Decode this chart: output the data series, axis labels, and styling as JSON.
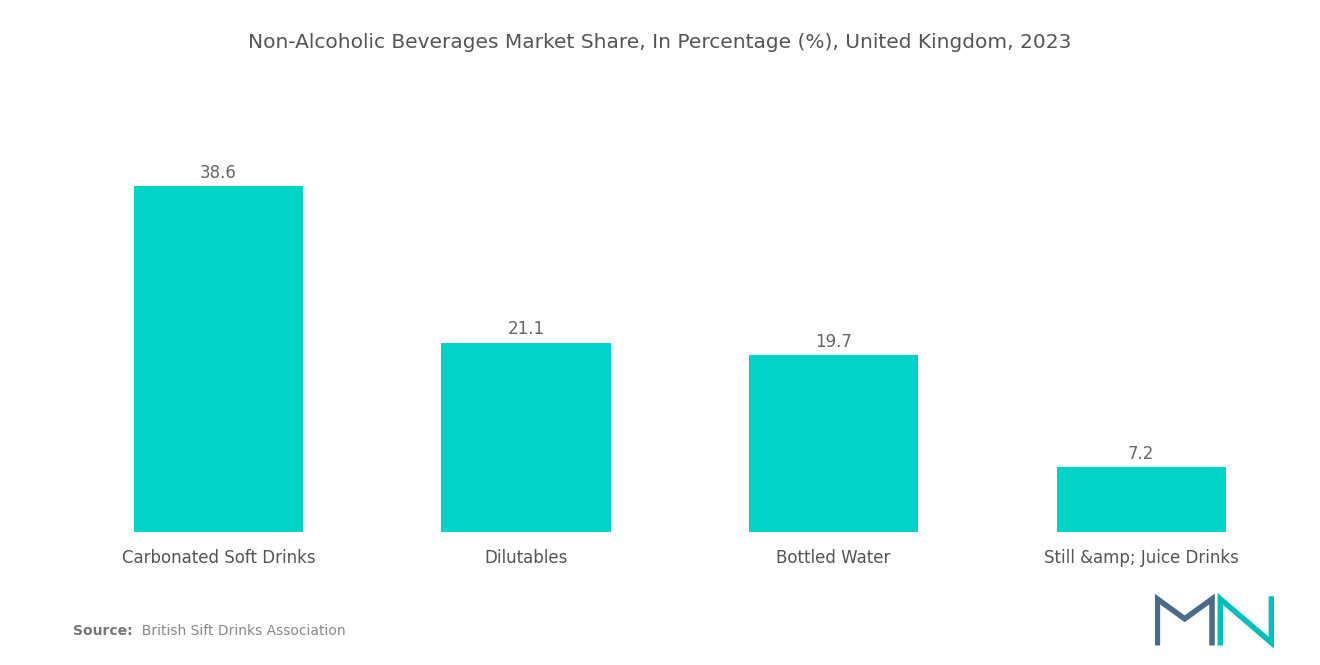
{
  "title": "Non-Alcoholic Beverages Market Share, In Percentage (%), United Kingdom, 2023",
  "categories": [
    "Carbonated Soft Drinks",
    "Dilutables",
    "Bottled Water",
    "Still &amp; Juice Drinks"
  ],
  "values": [
    38.6,
    21.1,
    19.7,
    7.2
  ],
  "bar_color": "#00D4C8",
  "background_color": "#ffffff",
  "title_fontsize": 14.5,
  "label_fontsize": 12,
  "value_fontsize": 12,
  "source_bold": "Source:",
  "source_text": "  British Sift Drinks Association",
  "ylim": [
    0,
    46
  ],
  "bar_width": 0.55
}
